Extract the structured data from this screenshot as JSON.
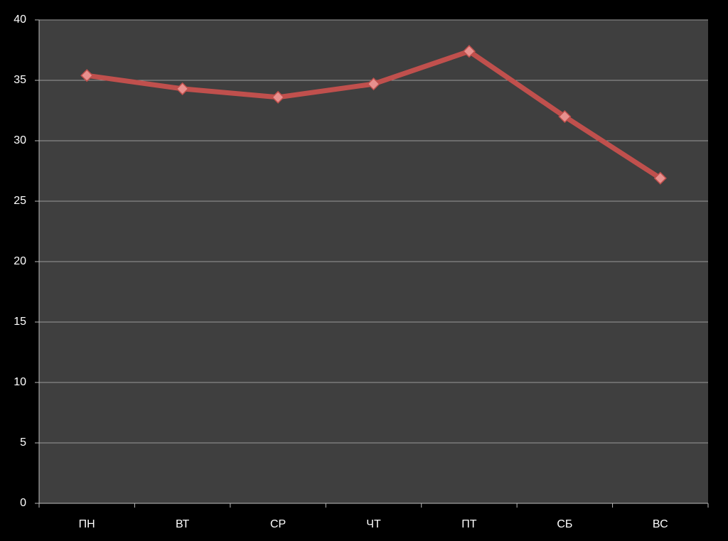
{
  "chart_data": {
    "type": "line",
    "categories": [
      "ПН",
      "ВТ",
      "СР",
      "ЧТ",
      "ПТ",
      "СБ",
      "ВС"
    ],
    "values": [
      35.4,
      34.3,
      33.6,
      34.7,
      37.4,
      32.0,
      26.9
    ],
    "color": "#c0504d",
    "marker_color": "#e8908e",
    "ylim": [
      0,
      40
    ],
    "yticks": [
      0,
      5,
      10,
      15,
      20,
      25,
      30,
      35,
      40
    ],
    "grid": true
  }
}
